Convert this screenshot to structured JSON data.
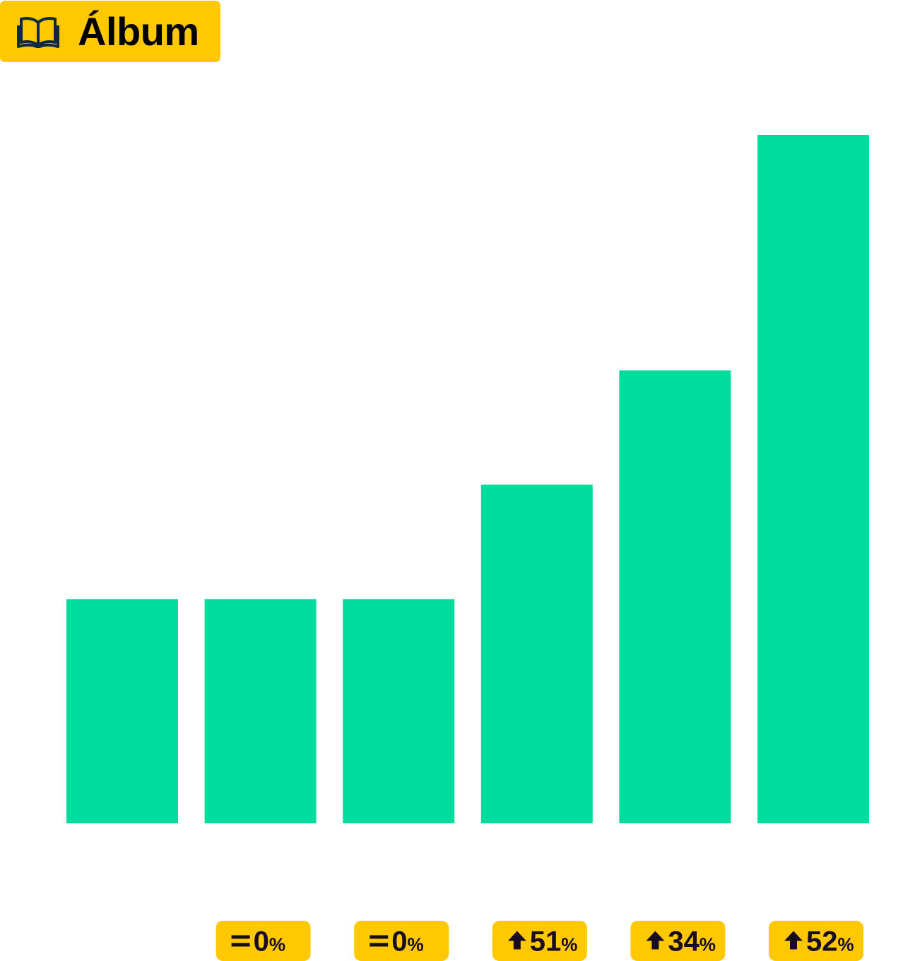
{
  "header": {
    "title": "Álbum",
    "icon": "open-book-icon"
  },
  "colors": {
    "accent": "#FFC800",
    "bar": "#00DC9E",
    "icon": "#0D2A45",
    "text": "#1A0B24"
  },
  "chart_data": {
    "type": "bar",
    "title": "Álbum",
    "categories": [
      "",
      "",
      "",
      "",
      "",
      ""
    ],
    "values": [
      1.0,
      1.0,
      1.0,
      1.51,
      2.02,
      3.07
    ],
    "ylim": [
      0,
      3.07
    ],
    "grid": false,
    "change_labels": [
      null,
      {
        "icon": "equals-icon",
        "value": "0",
        "unit": "%"
      },
      {
        "icon": "equals-icon",
        "value": "0",
        "unit": "%"
      },
      {
        "icon": "arrow-up-icon",
        "value": "51",
        "unit": "%"
      },
      {
        "icon": "arrow-up-icon",
        "value": "34",
        "unit": "%"
      },
      {
        "icon": "arrow-up-icon",
        "value": "52",
        "unit": "%"
      }
    ]
  }
}
